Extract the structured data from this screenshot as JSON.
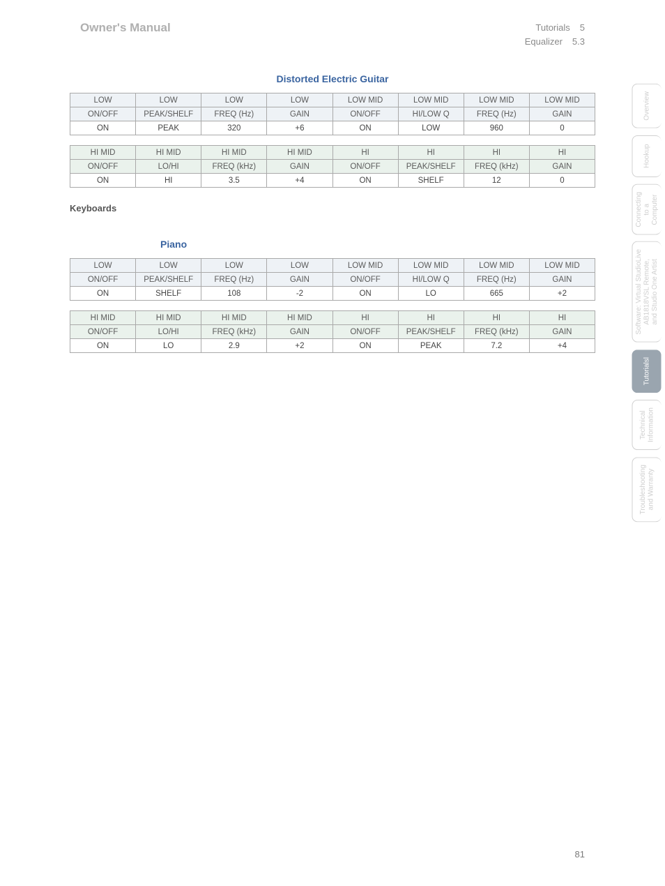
{
  "header": {
    "left": "Owner's Manual",
    "right_line1_label": "Tutorials",
    "right_line1_num": "5",
    "right_line2_label": "Equalizer",
    "right_line2_num": "5.3"
  },
  "page_number": "81",
  "sections": {
    "distorted_title": "Distorted Electric Guitar",
    "keyboards_title": "Keyboards",
    "piano_title": "Piano"
  },
  "shared_headers": {
    "low": {
      "h1": [
        "LOW",
        "LOW",
        "LOW",
        "LOW",
        "LOW MID",
        "LOW MID",
        "LOW MID",
        "LOW MID"
      ],
      "h2": [
        "ON/OFF",
        "PEAK/SHELF",
        "FREQ (Hz)",
        "GAIN",
        "ON/OFF",
        "HI/LOW Q",
        "FREQ (Hz)",
        "GAIN"
      ]
    },
    "hi": {
      "h1": [
        "HI MID",
        "HI MID",
        "HI MID",
        "HI MID",
        "HI",
        "HI",
        "HI",
        "HI"
      ],
      "h2": [
        "ON/OFF",
        "LO/HI",
        "FREQ (kHz)",
        "GAIN",
        "ON/OFF",
        "PEAK/SHELF",
        "FREQ (kHz)",
        "GAIN"
      ]
    }
  },
  "tables": {
    "distorted_low_values": [
      "ON",
      "PEAK",
      "320",
      "+6",
      "ON",
      "LOW",
      "960",
      "0"
    ],
    "distorted_hi_values": [
      "ON",
      "HI",
      "3.5",
      "+4",
      "ON",
      "SHELF",
      "12",
      "0"
    ],
    "piano_low_values": [
      "ON",
      "SHELF",
      "108",
      "-2",
      "ON",
      "LO",
      "665",
      "+2"
    ],
    "piano_hi_values": [
      "ON",
      "LO",
      "2.9",
      "+2",
      "ON",
      "PEAK",
      "7.2",
      "+4"
    ]
  },
  "tabs": [
    {
      "label": "Overview",
      "active": false,
      "tall": false
    },
    {
      "label": "Hookup",
      "active": false,
      "tall": false
    },
    {
      "label": "Connecting\nto a\nComputer",
      "active": false,
      "tall": false
    },
    {
      "label": "Software: Virtual StudioLive\nAB1818VSL Remote,\nand Studio One Artist",
      "active": false,
      "tall": true
    },
    {
      "label": "Tutorialsl",
      "active": true,
      "tall": false
    },
    {
      "label": "Technical\nInformation",
      "active": false,
      "tall": false
    },
    {
      "label": "Troubleshooting\nand Warranty",
      "active": false,
      "tall": false
    }
  ],
  "colors": {
    "header_blue_bg": "#eef2f6",
    "header_green_bg": "#eaf2ec",
    "border": "#a9a9a9",
    "title_blue": "#3a64a0",
    "tab_active_bg": "#9aa5af"
  }
}
